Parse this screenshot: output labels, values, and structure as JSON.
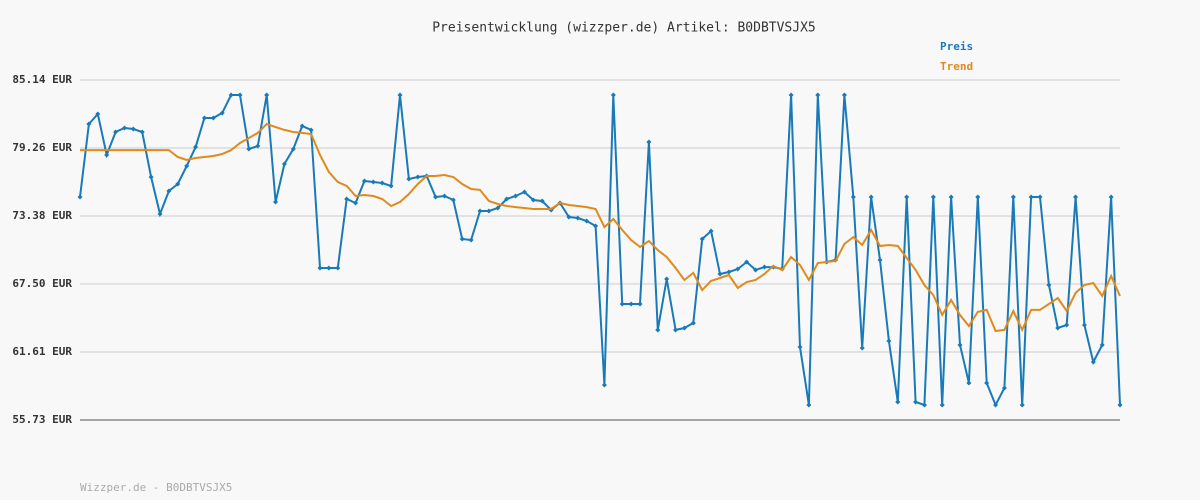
{
  "chart_data": {
    "type": "line",
    "title": "Preisentwicklung (wizzper.de) Artikel: B0DBTVSJX5",
    "footer": "Wizzper.de - B0DBTVSJX5",
    "legend": "top-right",
    "grid": true,
    "ylim": [
      55.73,
      85.14
    ],
    "yticks": [
      {
        "value": 55.73,
        "label": "55.73 EUR"
      },
      {
        "value": 61.61,
        "label": "61.61 EUR"
      },
      {
        "value": 67.5,
        "label": "67.50 EUR"
      },
      {
        "value": 73.38,
        "label": "73.38 EUR"
      },
      {
        "value": 79.26,
        "label": "79.26 EUR"
      },
      {
        "value": 85.14,
        "label": "85.14 EUR"
      }
    ],
    "series": [
      {
        "name": "Preis",
        "color": "#1a7ab8",
        "markers": true,
        "values": [
          75.02,
          81.33,
          82.2,
          78.65,
          80.64,
          80.99,
          80.9,
          80.64,
          76.75,
          73.55,
          75.54,
          76.14,
          77.7,
          79.34,
          81.85,
          81.85,
          82.29,
          83.84,
          83.84,
          79.17,
          79.43,
          83.84,
          74.59,
          77.87,
          79.17,
          81.16,
          80.82,
          68.88,
          68.88,
          68.88,
          74.85,
          74.5,
          76.4,
          76.32,
          76.23,
          75.97,
          83.84,
          76.58,
          76.75,
          76.84,
          75.02,
          75.11,
          74.76,
          71.39,
          71.3,
          73.81,
          73.81,
          74.07,
          74.85,
          75.11,
          75.45,
          74.76,
          74.67,
          73.9,
          74.5,
          73.29,
          73.2,
          72.94,
          72.51,
          58.76,
          83.84,
          65.76,
          65.76,
          65.76,
          79.78,
          63.52,
          67.93,
          63.52,
          63.69,
          64.12,
          71.39,
          72.08,
          68.36,
          68.53,
          68.79,
          69.4,
          68.71,
          68.96,
          68.96,
          68.79,
          83.84,
          62.04,
          57.03,
          83.84,
          69.4,
          69.57,
          83.84,
          75.02,
          61.96,
          75.02,
          69.57,
          62.56,
          57.29,
          75.02,
          57.29,
          57.03,
          75.02,
          57.03,
          75.02,
          62.22,
          58.93,
          75.02,
          58.93,
          57.03,
          58.5,
          75.02,
          57.03,
          75.02,
          75.02,
          67.41,
          63.69,
          63.95,
          75.02,
          63.95,
          60.75,
          62.22,
          75.02,
          57.03
        ]
      },
      {
        "name": "Trend",
        "color": "#e08a1e",
        "markers": false,
        "values": [
          79.08,
          79.08,
          79.08,
          79.08,
          79.08,
          79.08,
          79.08,
          79.08,
          79.08,
          79.08,
          79.08,
          78.48,
          78.22,
          78.39,
          78.48,
          78.57,
          78.74,
          79.08,
          79.69,
          80.12,
          80.56,
          81.33,
          81.07,
          80.82,
          80.64,
          80.56,
          80.47,
          78.65,
          77.18,
          76.32,
          75.97,
          75.11,
          75.19,
          75.11,
          74.85,
          74.24,
          74.59,
          75.28,
          76.14,
          76.84,
          76.84,
          76.92,
          76.75,
          76.14,
          75.71,
          75.63,
          74.67,
          74.41,
          74.24,
          74.15,
          74.07,
          73.98,
          73.98,
          73.98,
          74.5,
          74.33,
          74.24,
          74.15,
          73.98,
          72.42,
          73.12,
          72.17,
          71.3,
          70.7,
          71.21,
          70.43,
          69.83,
          68.88,
          67.84,
          68.45,
          66.97,
          67.76,
          68.01,
          68.27,
          67.15,
          67.67,
          67.84,
          68.36,
          69.05,
          68.71,
          69.83,
          69.14,
          67.84,
          69.31,
          69.4,
          69.48,
          70.95,
          71.56,
          70.87,
          72.17,
          70.78,
          70.87,
          70.78,
          69.74,
          68.71,
          67.41,
          66.54,
          64.81,
          66.11,
          64.81,
          63.86,
          65.08,
          65.25,
          63.43,
          63.52,
          65.16,
          63.52,
          65.25,
          65.25,
          65.76,
          66.28,
          65.16,
          66.72,
          67.41,
          67.58,
          66.46,
          68.19,
          66.46
        ]
      }
    ]
  }
}
